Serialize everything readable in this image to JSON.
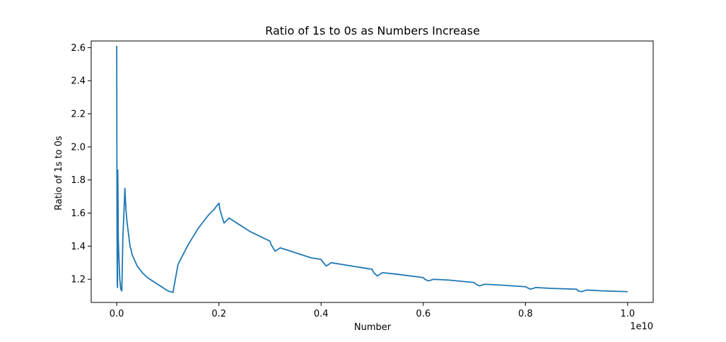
{
  "chart_data": {
    "type": "line",
    "title": "Ratio of 1s to 0s as Numbers Increase",
    "xlabel": "Number",
    "ylabel": "Ratio of 1s to 0s",
    "x_scale_label": "1e10",
    "x_ticks": [
      0.0,
      0.2,
      0.4,
      0.6,
      0.8,
      1.0
    ],
    "x_tick_labels": [
      "0.0",
      "0.2",
      "0.4",
      "0.6",
      "0.8",
      "1.0"
    ],
    "y_ticks": [
      1.2,
      1.4,
      1.6,
      1.8,
      2.0,
      2.2,
      2.4,
      2.6
    ],
    "y_tick_labels": [
      "1.2",
      "1.4",
      "1.6",
      "1.8",
      "2.0",
      "2.2",
      "2.4",
      "2.6"
    ],
    "xlim": [
      -0.05,
      1.05
    ],
    "ylim": [
      1.06,
      2.64
    ],
    "grid": false,
    "legend": false,
    "series": [
      {
        "color": "#1f77b4",
        "x": [
          0.0,
          0.0005,
          0.001,
          0.0015,
          0.002,
          0.0025,
          0.003,
          0.004,
          0.006,
          0.008,
          0.01,
          0.012,
          0.014,
          0.016,
          0.018,
          0.02,
          0.022,
          0.024,
          0.026,
          0.028,
          0.03,
          0.04,
          0.05,
          0.06,
          0.07,
          0.08,
          0.09,
          0.1,
          0.11,
          0.12,
          0.13,
          0.14,
          0.15,
          0.16,
          0.17,
          0.18,
          0.19,
          0.2,
          0.202,
          0.21,
          0.22,
          0.24,
          0.26,
          0.28,
          0.3,
          0.302,
          0.31,
          0.32,
          0.34,
          0.36,
          0.38,
          0.4,
          0.402,
          0.41,
          0.42,
          0.44,
          0.46,
          0.48,
          0.5,
          0.503,
          0.51,
          0.52,
          0.55,
          0.6,
          0.603,
          0.61,
          0.62,
          0.65,
          0.7,
          0.703,
          0.71,
          0.72,
          0.75,
          0.8,
          0.803,
          0.81,
          0.82,
          0.85,
          0.9,
          0.903,
          0.91,
          0.92,
          0.95,
          1.0
        ],
        "y": [
          2.61,
          1.6,
          1.18,
          1.15,
          1.86,
          1.7,
          1.45,
          1.35,
          1.2,
          1.14,
          1.13,
          1.45,
          1.6,
          1.75,
          1.62,
          1.55,
          1.5,
          1.45,
          1.4,
          1.38,
          1.35,
          1.28,
          1.24,
          1.21,
          1.19,
          1.17,
          1.15,
          1.13,
          1.12,
          1.29,
          1.35,
          1.41,
          1.46,
          1.51,
          1.55,
          1.59,
          1.62,
          1.66,
          1.62,
          1.54,
          1.57,
          1.53,
          1.49,
          1.46,
          1.43,
          1.41,
          1.37,
          1.39,
          1.37,
          1.35,
          1.33,
          1.32,
          1.31,
          1.28,
          1.3,
          1.29,
          1.28,
          1.27,
          1.26,
          1.24,
          1.22,
          1.24,
          1.23,
          1.21,
          1.2,
          1.19,
          1.2,
          1.195,
          1.18,
          1.17,
          1.16,
          1.17,
          1.165,
          1.155,
          1.15,
          1.14,
          1.15,
          1.145,
          1.14,
          1.13,
          1.125,
          1.135,
          1.13,
          1.125
        ]
      }
    ]
  }
}
